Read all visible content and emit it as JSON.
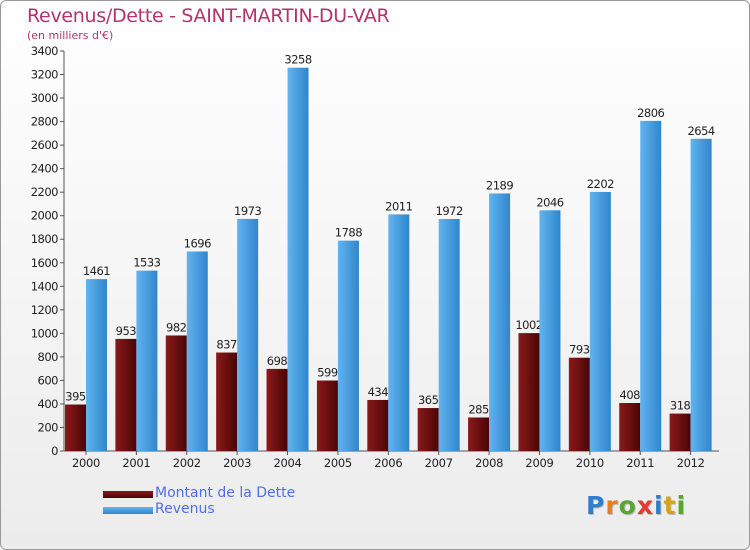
{
  "chart_data": {
    "type": "bar",
    "title": "Revenus/Dette - SAINT-MARTIN-DU-VAR",
    "subtitle": "(en milliers d'€)",
    "categories": [
      "2000",
      "2001",
      "2002",
      "2003",
      "2004",
      "2005",
      "2006",
      "2007",
      "2008",
      "2009",
      "2010",
      "2011",
      "2012"
    ],
    "series": [
      {
        "name": "Montant de la Dette",
        "color": "#6b0d0d",
        "values": [
          395,
          953,
          982,
          837,
          698,
          599,
          434,
          365,
          285,
          1002,
          793,
          408,
          318
        ]
      },
      {
        "name": "Revenus",
        "color": "#4aa3e6",
        "values": [
          1461,
          1533,
          1696,
          1973,
          3258,
          1788,
          2011,
          1972,
          2189,
          2046,
          2202,
          2806,
          2654
        ]
      }
    ],
    "ylim": [
      0,
      3400
    ],
    "yticks": [
      0,
      200,
      400,
      600,
      800,
      1000,
      1200,
      1400,
      1600,
      1800,
      2000,
      2200,
      2400,
      2600,
      2800,
      3000,
      3200,
      3400
    ],
    "grid": false,
    "legend_position": "bottom-left"
  },
  "logo": {
    "text": "Proxiti",
    "letters": [
      "P",
      "r",
      "o",
      "x",
      "i",
      "t",
      "i"
    ],
    "colors": [
      "#2e7fc9",
      "#e8801a",
      "#5aa532",
      "#e23b2e",
      "#2e7fc9",
      "#d6a21c",
      "#5aa532"
    ]
  }
}
